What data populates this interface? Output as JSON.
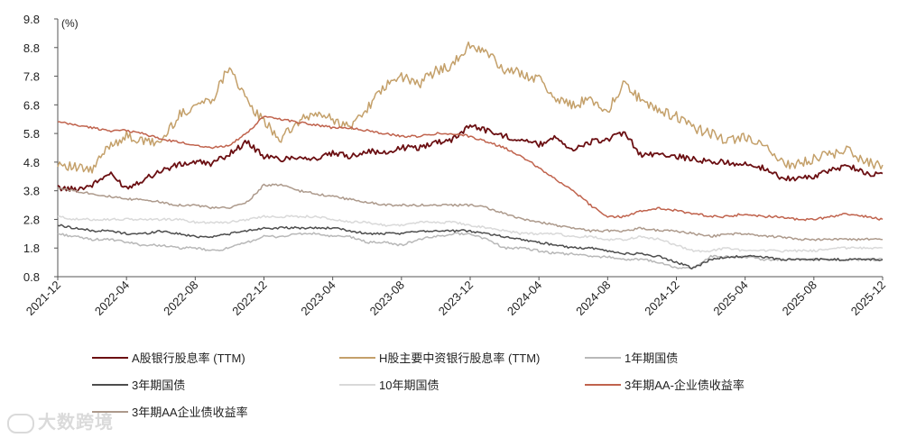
{
  "chart_data": {
    "type": "line",
    "unit_label": "(%)",
    "y_ticks": [
      "9.8",
      "8.8",
      "7.8",
      "6.8",
      "5.8",
      "4.8",
      "3.8",
      "2.8",
      "1.8",
      "0.8"
    ],
    "ylim": [
      0.8,
      9.8
    ],
    "x_ticks": [
      "2021-12",
      "2022-04",
      "2022-08",
      "2022-12",
      "2023-04",
      "2023-08",
      "2023-12",
      "2024-04",
      "2024-08",
      "2024-12",
      "2025-04",
      "2025-08",
      "2025-12"
    ],
    "x_monthly": [
      "2021-12",
      "2022-01",
      "2022-02",
      "2022-03",
      "2022-04",
      "2022-05",
      "2022-06",
      "2022-07",
      "2022-08",
      "2022-09",
      "2022-10",
      "2022-11",
      "2022-12",
      "2023-01",
      "2023-02",
      "2023-03",
      "2023-04",
      "2023-05",
      "2023-06",
      "2023-07",
      "2023-08",
      "2023-09",
      "2023-10",
      "2023-11",
      "2023-12",
      "2024-01",
      "2024-02",
      "2024-03",
      "2024-04",
      "2024-05",
      "2024-06",
      "2024-07",
      "2024-08",
      "2024-09",
      "2024-10",
      "2024-11",
      "2024-12",
      "2025-01",
      "2025-02",
      "2025-03",
      "2025-04",
      "2025-05",
      "2025-06",
      "2025-07",
      "2025-08",
      "2025-09",
      "2025-10",
      "2025-11",
      "2025-12"
    ],
    "series": [
      {
        "name": "A股银行股息率 (TTM)",
        "color": "#6b0f12",
        "values": [
          3.9,
          3.85,
          4.0,
          4.4,
          3.9,
          4.2,
          4.5,
          4.7,
          4.8,
          4.75,
          5.1,
          5.5,
          5.0,
          4.9,
          5.0,
          4.9,
          5.1,
          5.0,
          5.2,
          5.1,
          5.3,
          5.3,
          5.5,
          5.6,
          6.1,
          5.9,
          5.7,
          5.6,
          5.4,
          5.7,
          5.2,
          5.5,
          5.6,
          5.8,
          5.0,
          5.1,
          5.0,
          4.9,
          4.8,
          4.8,
          4.7,
          4.6,
          4.3,
          4.2,
          4.3,
          4.5,
          4.7,
          4.4,
          4.4
        ]
      },
      {
        "name": "H股主要中资银行股息率 (TTM)",
        "color": "#c4a06a",
        "values": [
          4.8,
          4.6,
          4.5,
          5.4,
          5.7,
          5.5,
          5.5,
          6.4,
          6.8,
          7.0,
          8.2,
          6.9,
          6.2,
          5.6,
          6.2,
          6.5,
          6.3,
          6.0,
          6.7,
          7.4,
          7.8,
          7.5,
          8.0,
          8.2,
          8.9,
          8.6,
          8.0,
          7.9,
          7.7,
          7.0,
          6.8,
          7.0,
          6.6,
          7.6,
          6.9,
          6.6,
          6.4,
          6.0,
          5.8,
          5.5,
          5.7,
          5.4,
          4.8,
          4.7,
          4.9,
          5.1,
          5.2,
          4.8,
          4.7
        ]
      },
      {
        "name": "1年期国债",
        "color": "#b8b8b8",
        "values": [
          2.3,
          2.2,
          2.1,
          2.1,
          2.0,
          1.9,
          1.9,
          1.8,
          1.8,
          1.7,
          1.8,
          2.0,
          2.2,
          2.2,
          2.3,
          2.3,
          2.2,
          2.2,
          2.0,
          2.0,
          1.9,
          2.1,
          2.2,
          2.3,
          2.3,
          2.1,
          1.8,
          1.8,
          1.7,
          1.6,
          1.6,
          1.5,
          1.5,
          1.4,
          1.4,
          1.3,
          1.1,
          1.1,
          1.5,
          1.5,
          1.5,
          1.4,
          1.4,
          1.4,
          1.4,
          1.4,
          1.4,
          1.4,
          1.4
        ]
      },
      {
        "name": "3年期国债",
        "color": "#4d4d4d",
        "values": [
          2.6,
          2.5,
          2.4,
          2.4,
          2.3,
          2.3,
          2.4,
          2.3,
          2.2,
          2.2,
          2.3,
          2.4,
          2.5,
          2.5,
          2.5,
          2.5,
          2.5,
          2.4,
          2.3,
          2.3,
          2.3,
          2.4,
          2.4,
          2.4,
          2.4,
          2.3,
          2.2,
          2.1,
          2.0,
          1.9,
          1.8,
          1.8,
          1.7,
          1.6,
          1.6,
          1.5,
          1.3,
          1.1,
          1.4,
          1.5,
          1.5,
          1.5,
          1.4,
          1.4,
          1.4,
          1.4,
          1.4,
          1.4,
          1.4
        ]
      },
      {
        "name": "10年期国债",
        "color": "#d9d9d9",
        "values": [
          2.9,
          2.8,
          2.8,
          2.8,
          2.8,
          2.8,
          2.8,
          2.8,
          2.7,
          2.7,
          2.7,
          2.8,
          2.9,
          2.9,
          2.9,
          2.9,
          2.8,
          2.7,
          2.7,
          2.6,
          2.6,
          2.7,
          2.7,
          2.7,
          2.6,
          2.5,
          2.4,
          2.3,
          2.3,
          2.3,
          2.2,
          2.2,
          2.1,
          2.1,
          2.2,
          2.1,
          1.9,
          1.7,
          1.7,
          1.8,
          1.7,
          1.7,
          1.7,
          1.7,
          1.7,
          1.8,
          1.8,
          1.8,
          1.8
        ]
      },
      {
        "name": "3年期AA-企业债收益率",
        "color": "#c0634d",
        "values": [
          6.2,
          6.1,
          6.0,
          5.9,
          5.9,
          5.8,
          5.6,
          5.5,
          5.4,
          5.3,
          5.4,
          5.8,
          6.4,
          6.3,
          6.2,
          6.1,
          6.0,
          6.0,
          5.9,
          5.8,
          5.7,
          5.7,
          5.8,
          5.8,
          5.7,
          5.5,
          5.3,
          5.0,
          4.6,
          4.2,
          3.8,
          3.3,
          2.9,
          2.9,
          3.1,
          3.2,
          3.1,
          3.0,
          2.9,
          2.9,
          3.0,
          2.9,
          2.9,
          2.8,
          2.8,
          2.9,
          3.0,
          2.9,
          2.8
        ]
      },
      {
        "name": "3年期AA企业债收益率",
        "color": "#ad9a8c",
        "values": [
          3.9,
          3.8,
          3.7,
          3.6,
          3.5,
          3.5,
          3.4,
          3.3,
          3.3,
          3.2,
          3.2,
          3.4,
          4.0,
          4.0,
          3.8,
          3.7,
          3.6,
          3.5,
          3.4,
          3.3,
          3.3,
          3.3,
          3.3,
          3.3,
          3.3,
          3.2,
          3.0,
          2.8,
          2.7,
          2.6,
          2.5,
          2.4,
          2.4,
          2.4,
          2.5,
          2.4,
          2.4,
          2.3,
          2.2,
          2.3,
          2.3,
          2.2,
          2.2,
          2.1,
          2.1,
          2.1,
          2.1,
          2.1,
          2.1
        ]
      }
    ]
  },
  "legend": [
    {
      "label": "A股银行股息率 (TTM)",
      "color": "#6b0f12"
    },
    {
      "label": "H股主要中资银行股息率 (TTM)",
      "color": "#c4a06a"
    },
    {
      "label": "1年期国债",
      "color": "#b8b8b8"
    },
    {
      "label": "3年期国债",
      "color": "#4d4d4d"
    },
    {
      "label": "10年期国债",
      "color": "#d9d9d9"
    },
    {
      "label": "3年期AA-企业债收益率",
      "color": "#c0634d"
    },
    {
      "label": "3年期AA企业债收益率",
      "color": "#ad9a8c"
    }
  ],
  "watermark": "大数跨境"
}
